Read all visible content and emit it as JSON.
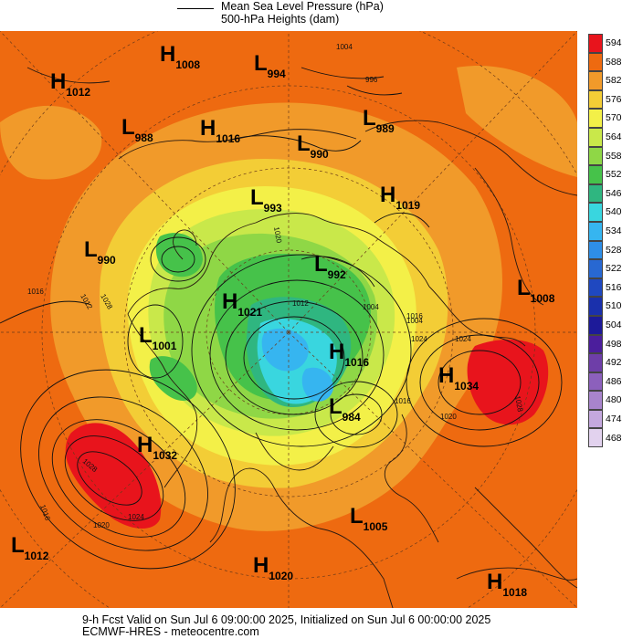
{
  "legend": {
    "line1": "Mean Sea Level Pressure (hPa)",
    "line2": "500-hPa Heights (dam)"
  },
  "footer": {
    "line1": "9-h Fcst Valid on Sun Jul  6 09:00:00 2025, Initialized on Sun Jul  6 00:00:00 2025",
    "line2": "ECMWF-HRES  - meteocentre.com"
  },
  "colorbar": {
    "ticks": [
      "594",
      "588",
      "582",
      "576",
      "570",
      "564",
      "558",
      "552",
      "546",
      "540",
      "534",
      "528",
      "522",
      "516",
      "510",
      "504",
      "498",
      "492",
      "486",
      "480",
      "474",
      "468"
    ],
    "colors": [
      "#e8141c",
      "#ee6a10",
      "#f19a2a",
      "#f3cd36",
      "#f3f048",
      "#c9e84a",
      "#8fd746",
      "#46c24a",
      "#2fb680",
      "#39d6df",
      "#36b5f0",
      "#2e8ee6",
      "#2868d2",
      "#1f48c0",
      "#1a30ac",
      "#1d1a99",
      "#4b1e9c",
      "#6e3ea8",
      "#8c60bc",
      "#a884cc",
      "#c4a8de",
      "#e2d2ee"
    ]
  },
  "systems": [
    {
      "type": "H",
      "value": "1008"
    },
    {
      "type": "L",
      "value": "994"
    },
    {
      "type": "H",
      "value": "1012"
    },
    {
      "type": "L",
      "value": "989"
    },
    {
      "type": "L",
      "value": "988"
    },
    {
      "type": "H",
      "value": "1016"
    },
    {
      "type": "L",
      "value": "990"
    },
    {
      "type": "L",
      "value": "993"
    },
    {
      "type": "H",
      "value": "1019"
    },
    {
      "type": "L",
      "value": "990"
    },
    {
      "type": "L",
      "value": "992"
    },
    {
      "type": "L",
      "value": "1008"
    },
    {
      "type": "H",
      "value": "1021"
    },
    {
      "type": "L",
      "value": "1001"
    },
    {
      "type": "H",
      "value": "1016"
    },
    {
      "type": "H",
      "value": "1034"
    },
    {
      "type": "L",
      "value": "984"
    },
    {
      "type": "H",
      "value": "1032"
    },
    {
      "type": "L",
      "value": "1005"
    },
    {
      "type": "L",
      "value": "1012"
    },
    {
      "type": "H",
      "value": "1020"
    },
    {
      "type": "H",
      "value": "1018"
    }
  ],
  "contour_labels": [
    "1004",
    "996",
    "1004",
    "1012",
    "1016",
    "1028",
    "1004",
    "1024",
    "1020",
    "1028",
    "1016",
    "1024",
    "1020",
    "1016",
    "1012",
    "1028",
    "1024",
    "1020",
    "1016"
  ]
}
